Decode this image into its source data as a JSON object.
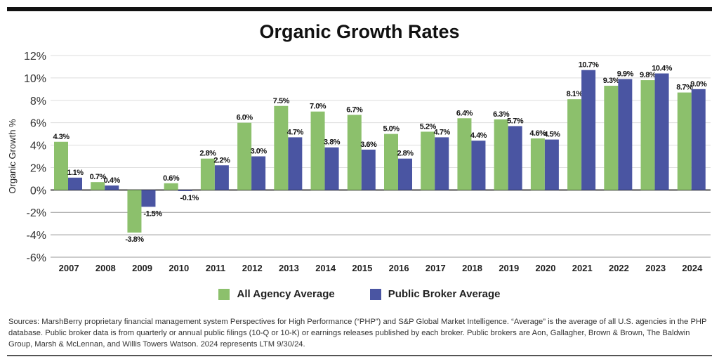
{
  "chart_data": {
    "type": "bar",
    "title": "Organic Growth Rates",
    "xlabel": "",
    "ylabel": "Organic Growth %",
    "ylim": [
      -6,
      12
    ],
    "yticks": [
      12,
      10,
      8,
      6,
      4,
      2,
      0,
      -2,
      -4,
      -6
    ],
    "ytick_labels": [
      "12%",
      "10%",
      "8%",
      "6%",
      "4%",
      "2%",
      "0%",
      "-2%",
      "-4%",
      "-6%"
    ],
    "grid": true,
    "legend_position": "bottom",
    "categories": [
      "2007",
      "2008",
      "2009",
      "2010",
      "2011",
      "2012",
      "2013",
      "2014",
      "2015",
      "2016",
      "2017",
      "2018",
      "2019",
      "2020",
      "2021",
      "2022",
      "2023",
      "2024"
    ],
    "series": [
      {
        "name": "All Agency Average",
        "color": "#8cc06c",
        "values": [
          4.3,
          0.7,
          -3.8,
          0.6,
          2.8,
          6.0,
          7.5,
          7.0,
          6.7,
          5.0,
          5.2,
          6.4,
          6.3,
          4.6,
          8.1,
          9.3,
          9.8,
          8.7
        ],
        "labels": [
          "4.3%",
          "0.7%",
          "-3.8%",
          "0.6%",
          "2.8%",
          "6.0%",
          "7.5%",
          "7.0%",
          "6.7%",
          "5.0%",
          "5.2%",
          "6.4%",
          "6.3%",
          "4.6%",
          "8.1%",
          "9.3%",
          "9.8%",
          "8.7%"
        ]
      },
      {
        "name": "Public Broker Average",
        "color": "#4a55a2",
        "values": [
          1.1,
          0.4,
          -1.5,
          -0.1,
          2.2,
          3.0,
          4.7,
          3.8,
          3.6,
          2.8,
          4.7,
          4.4,
          5.7,
          4.5,
          10.7,
          9.9,
          10.4,
          9.0
        ],
        "labels": [
          "1.1%",
          "0.4%",
          "-1.5%",
          "-0.1%",
          "2.2%",
          "3.0%",
          "4.7%",
          "3.8%",
          "3.6%",
          "2.8%",
          "4.7%",
          "4.4%",
          "5.7%",
          "4.5%",
          "10.7%",
          "9.9%",
          "10.4%",
          "9.0%"
        ]
      }
    ]
  },
  "footer": {
    "sources": "Sources: MarshBerry proprietary financial management system Perspectives for High Performance (“PHP”) and S&P Global Market Intelligence. “Average” is the average of all U.S. agencies in the PHP database. Public broker data is from quarterly or annual public filings (10-Q or 10-K) or earnings releases published by each broker. Public brokers are Aon, Gallagher, Brown & Brown, The Baldwin Group, Marsh & McLennan, and Willis Towers Watson. 2024 represents LTM 9/30/24."
  }
}
